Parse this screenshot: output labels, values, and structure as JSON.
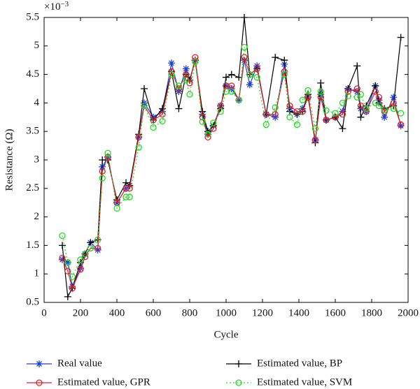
{
  "chart_data": {
    "type": "line",
    "x_label": "Cycle",
    "y_label": "Resistance (Ω)",
    "y_scale_label": {
      "base": "×10",
      "exponent": "−3"
    },
    "xlim": [
      0,
      2000
    ],
    "xticks": [
      0,
      200,
      400,
      600,
      800,
      1000,
      1200,
      1400,
      1600,
      1800,
      2000
    ],
    "ylim": [
      0.5,
      5.5
    ],
    "yticks": [
      0.5,
      1,
      1.5,
      2,
      2.5,
      3,
      3.5,
      4,
      4.5,
      5,
      5.5
    ],
    "x": [
      100,
      130,
      155,
      200,
      225,
      255,
      295,
      320,
      350,
      400,
      450,
      470,
      520,
      550,
      600,
      650,
      700,
      740,
      780,
      800,
      830,
      870,
      900,
      930,
      970,
      1000,
      1030,
      1070,
      1100,
      1130,
      1170,
      1220,
      1270,
      1320,
      1350,
      1390,
      1420,
      1450,
      1490,
      1520,
      1550,
      1600,
      1640,
      1670,
      1720,
      1740,
      1770,
      1820,
      1840,
      1870,
      1920,
      1960
    ],
    "series": [
      {
        "name": "Real value",
        "color": "#1f3fd6",
        "marker": "star",
        "dash": "solid",
        "values": [
          1.25,
          1.2,
          0.78,
          1.1,
          1.35,
          1.55,
          1.42,
          2.88,
          3.05,
          2.25,
          2.5,
          2.55,
          3.4,
          4.0,
          3.75,
          3.85,
          4.7,
          4.2,
          4.6,
          4.4,
          4.75,
          3.8,
          3.45,
          3.6,
          3.95,
          4.3,
          4.25,
          4.05,
          4.75,
          4.32,
          4.65,
          3.8,
          3.75,
          4.68,
          3.9,
          3.8,
          3.9,
          4.1,
          3.35,
          4.15,
          3.7,
          3.75,
          3.85,
          4.25,
          4.2,
          3.9,
          3.85,
          4.3,
          4.05,
          3.75,
          4.1,
          3.6
        ]
      },
      {
        "name": "Estimated value, BP",
        "color": "#000000",
        "marker": "plus",
        "dash": "solid",
        "values": [
          1.5,
          0.6,
          0.75,
          1.2,
          1.35,
          1.55,
          1.6,
          3.0,
          3.0,
          2.3,
          2.6,
          2.55,
          3.45,
          4.25,
          3.7,
          3.9,
          4.55,
          3.9,
          4.5,
          4.4,
          4.75,
          3.85,
          3.5,
          3.6,
          3.9,
          4.45,
          4.5,
          4.45,
          5.5,
          4.5,
          4.6,
          3.8,
          4.8,
          4.75,
          3.85,
          3.8,
          3.85,
          4.15,
          3.3,
          4.35,
          3.7,
          3.75,
          3.55,
          4.25,
          4.65,
          3.75,
          3.95,
          4.3,
          4.0,
          3.9,
          3.95,
          5.15
        ]
      },
      {
        "name": "Estimated value, GPR",
        "color": "#e0202a",
        "marker": "circle",
        "dash": "solid",
        "values": [
          1.28,
          1.05,
          0.75,
          1.08,
          1.3,
          1.45,
          1.45,
          2.8,
          3.05,
          2.25,
          2.5,
          2.5,
          3.4,
          3.95,
          3.7,
          3.8,
          4.55,
          4.25,
          4.5,
          4.35,
          4.8,
          3.75,
          3.4,
          3.55,
          3.95,
          4.3,
          4.3,
          4.05,
          4.8,
          4.5,
          4.6,
          3.8,
          3.8,
          4.55,
          3.95,
          3.85,
          3.85,
          4.1,
          3.35,
          4.1,
          3.7,
          3.75,
          3.8,
          4.2,
          4.25,
          3.95,
          3.85,
          4.2,
          4.1,
          3.85,
          4.0,
          3.62
        ]
      },
      {
        "name": "Estimated value, SVM",
        "color": "#22dd22",
        "marker": "circle",
        "dash": "dotted",
        "values": [
          1.67,
          1.2,
          0.95,
          1.25,
          1.35,
          1.45,
          1.6,
          2.68,
          3.12,
          2.15,
          2.35,
          2.35,
          3.22,
          3.95,
          3.57,
          3.68,
          4.5,
          4.3,
          4.4,
          4.15,
          4.72,
          3.67,
          3.45,
          3.65,
          3.85,
          4.2,
          4.2,
          4.05,
          4.98,
          4.5,
          4.45,
          3.62,
          3.92,
          4.5,
          3.75,
          3.62,
          4.05,
          4.22,
          3.55,
          4.2,
          3.87,
          3.82,
          4.0,
          4.12,
          4.1,
          4.15,
          3.9,
          4.0,
          3.95,
          3.88,
          3.9,
          3.82
        ]
      }
    ]
  }
}
